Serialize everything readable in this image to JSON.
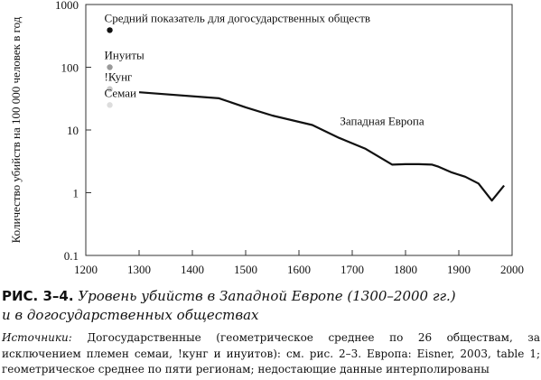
{
  "chart_data": {
    "type": "line",
    "ylabel": "Количество убийств на 100 000 человек в год",
    "xlabel": "",
    "y_scale": "log",
    "ylim": [
      0.1,
      1000
    ],
    "xlim": [
      1200,
      2000
    ],
    "x_ticks": [
      "1200",
      "1300",
      "1400",
      "1500",
      "1600",
      "1700",
      "1800",
      "1900",
      "2000"
    ],
    "y_ticks": [
      "0.1",
      "1",
      "10",
      "100",
      "1000"
    ],
    "grid": false,
    "series": [
      {
        "name": "Западная Европа",
        "color": "#111111",
        "x": [
          1300,
          1450,
          1500,
          1550,
          1625,
          1675,
          1725,
          1775,
          1800,
          1825,
          1850,
          1862,
          1887,
          1912,
          1937,
          1962,
          1985
        ],
        "y": [
          40,
          32,
          23,
          17,
          12,
          7.5,
          5,
          2.8,
          2.85,
          2.85,
          2.8,
          2.6,
          2.1,
          1.8,
          1.4,
          0.75,
          1.3
        ]
      }
    ],
    "points": [
      {
        "label": "Средний показатель для догосударственных обществ",
        "x": 1245,
        "y": 390,
        "color": "#111111",
        "label_style": "normal"
      },
      {
        "label": "Инуиты",
        "x": 1245,
        "y": 100,
        "color": "#9a9a9a",
        "label_style": "normal"
      },
      {
        "label": "!Кунг",
        "x": 1245,
        "y": 45,
        "color": "#c8c8c8",
        "label_style": "muted"
      },
      {
        "label": "Семаи",
        "x": 1245,
        "y": 25,
        "color": "#dddddd",
        "label_style": "muted"
      }
    ],
    "annotations": [
      {
        "text": "Западная Европа"
      }
    ]
  },
  "caption": {
    "figure_label": "РИС. 3–4.",
    "title_line1": "Уровень убийств в Западной Европе (1300–2000 гг.)",
    "title_line2": "и в догосударственных обществах"
  },
  "sources": {
    "label": "Источники:",
    "text": "Догосударственные (геометрическое среднее по 26 обществам, за исключением племен семаи, !кунг и инуитов): см. рис. 2–3. Европа: Eisner, 2003, table 1; геометрическое среднее по пяти регионам; недостающие данные интерполированы"
  }
}
